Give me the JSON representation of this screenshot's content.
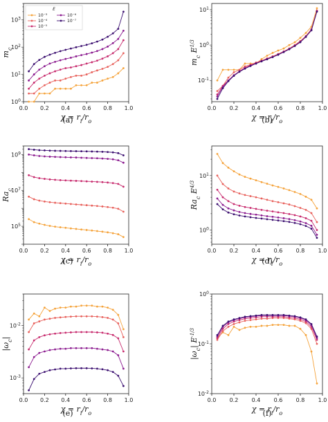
{
  "figure": {
    "legend": {
      "title": "E",
      "entries": [
        {
          "label": "10⁻³",
          "color": "#f5a33b"
        },
        {
          "label": "10⁻⁴",
          "color": "#e8605b"
        },
        {
          "label": "10⁻⁵",
          "color": "#c72a6d"
        },
        {
          "label": "10⁻⁶",
          "color": "#8b1a8f"
        },
        {
          "label": "10⁻⁷",
          "color": "#3b0f70"
        }
      ]
    }
  },
  "chart_data": [
    {
      "type": "line",
      "caption": "(a)",
      "yscale": "log",
      "ylim": [
        1,
        4000
      ],
      "xlim": [
        0,
        1
      ],
      "ylabel": "m_c",
      "xlabel": "χ = r_i/r_o",
      "xticks": [
        0.0,
        0.2,
        0.4,
        0.6,
        0.8,
        1.0
      ],
      "yticks": [
        {
          "v": 1,
          "label": "10",
          "sup": "0"
        },
        {
          "v": 10,
          "label": "10",
          "sup": "1"
        },
        {
          "v": 100,
          "label": "10",
          "sup": "2"
        },
        {
          "v": 1000,
          "label": "10",
          "sup": "3"
        }
      ],
      "legend": "top-left",
      "x": [
        0.05,
        0.1,
        0.15,
        0.2,
        0.25,
        0.3,
        0.35,
        0.4,
        0.45,
        0.5,
        0.55,
        0.6,
        0.65,
        0.7,
        0.75,
        0.8,
        0.85,
        0.9,
        0.95
      ],
      "series": [
        {
          "name": "10⁻³",
          "values": [
            1,
            1,
            2,
            2,
            2,
            3,
            3,
            3,
            3,
            4,
            4,
            4,
            5,
            5,
            6,
            7,
            8,
            11,
            17
          ]
        },
        {
          "name": "10⁻⁴",
          "values": [
            2,
            2,
            3,
            4,
            5,
            6,
            6,
            7,
            8,
            9,
            9,
            10,
            12,
            14,
            16,
            19,
            24,
            33,
            60
          ]
        },
        {
          "name": "10⁻⁵",
          "values": [
            3,
            5,
            7,
            9,
            11,
            13,
            15,
            17,
            18,
            20,
            22,
            25,
            28,
            32,
            38,
            46,
            60,
            85,
            180
          ]
        },
        {
          "name": "10⁻⁶",
          "values": [
            6,
            10,
            15,
            20,
            25,
            29,
            33,
            37,
            41,
            46,
            51,
            56,
            63,
            72,
            85,
            105,
            140,
            200,
            400
          ]
        },
        {
          "name": "10⁻⁷",
          "values": [
            13,
            24,
            34,
            44,
            53,
            62,
            71,
            80,
            89,
            99,
            110,
            122,
            138,
            160,
            190,
            240,
            320,
            470,
            2000
          ]
        }
      ]
    },
    {
      "type": "line",
      "caption": "(b)",
      "yscale": "log",
      "ylim": [
        0.025,
        15
      ],
      "xlim": [
        0,
        1
      ],
      "ylabel": "m_c E^{1/3}",
      "xlabel": "χ = r_i/r_o",
      "xticks": [
        0.0,
        0.2,
        0.4,
        0.6,
        0.8,
        1.0
      ],
      "yticks": [
        {
          "v": 0.1,
          "label": "10",
          "sup": "-1"
        },
        {
          "v": 1,
          "label": "10",
          "sup": "0"
        },
        {
          "v": 10,
          "label": "10",
          "sup": "1"
        }
      ],
      "x": [
        0.05,
        0.1,
        0.15,
        0.2,
        0.25,
        0.3,
        0.35,
        0.4,
        0.45,
        0.5,
        0.55,
        0.6,
        0.65,
        0.7,
        0.75,
        0.8,
        0.85,
        0.9,
        0.95
      ],
      "series": [
        {
          "name": "10⁻³",
          "values": [
            0.1,
            0.2,
            0.2,
            0.2,
            0.2,
            0.3,
            0.3,
            0.3,
            0.4,
            0.5,
            0.6,
            0.7,
            0.8,
            1.0,
            1.2,
            1.6,
            2.2,
            3.3,
            11
          ]
        },
        {
          "name": "10⁻⁴",
          "values": [
            0.05,
            0.07,
            0.12,
            0.17,
            0.2,
            0.25,
            0.28,
            0.32,
            0.36,
            0.42,
            0.48,
            0.56,
            0.66,
            0.8,
            1.0,
            1.3,
            1.8,
            2.8,
            9.5
          ]
        },
        {
          "name": "10⁻⁵",
          "values": [
            0.04,
            0.07,
            0.1,
            0.14,
            0.18,
            0.23,
            0.27,
            0.31,
            0.36,
            0.41,
            0.47,
            0.55,
            0.65,
            0.78,
            0.97,
            1.25,
            1.75,
            2.7,
            9.2
          ]
        },
        {
          "name": "10⁻⁶",
          "values": [
            0.035,
            0.065,
            0.1,
            0.14,
            0.18,
            0.22,
            0.26,
            0.3,
            0.35,
            0.4,
            0.46,
            0.54,
            0.64,
            0.77,
            0.95,
            1.23,
            1.72,
            2.65,
            9.0
          ]
        },
        {
          "name": "10⁻⁷",
          "values": [
            0.03,
            0.06,
            0.095,
            0.135,
            0.175,
            0.215,
            0.255,
            0.3,
            0.345,
            0.395,
            0.455,
            0.53,
            0.63,
            0.76,
            0.94,
            1.2,
            1.7,
            2.6,
            8.8
          ]
        }
      ]
    },
    {
      "type": "line",
      "caption": "(c)",
      "yscale": "log",
      "ylim": [
        10000,
        3000000000
      ],
      "xlim": [
        0,
        1
      ],
      "ylabel": "Ra_c",
      "xlabel": "χ = r_i/r_o",
      "xticks": [
        0.0,
        0.2,
        0.4,
        0.6,
        0.8,
        1.0
      ],
      "yticks": [
        {
          "v": 100000,
          "label": "10",
          "sup": "5"
        },
        {
          "v": 10000000,
          "label": "10",
          "sup": "7"
        },
        {
          "v": 1000000000,
          "label": "10",
          "sup": "9"
        }
      ],
      "x": [
        0.05,
        0.1,
        0.15,
        0.2,
        0.25,
        0.3,
        0.35,
        0.4,
        0.45,
        0.5,
        0.55,
        0.6,
        0.65,
        0.7,
        0.75,
        0.8,
        0.85,
        0.9,
        0.95
      ],
      "series": [
        {
          "name": "10⁻³",
          "values": [
            250000,
            170000,
            140000,
            120000,
            105000,
            95000,
            88000,
            82000,
            76000,
            71000,
            66000,
            62000,
            58000,
            54000,
            50000,
            46000,
            41000,
            36000,
            25000
          ]
        },
        {
          "name": "10⁻⁴",
          "values": [
            4500000,
            3200000,
            2700000,
            2400000,
            2200000,
            2050000,
            1950000,
            1850000,
            1750000,
            1650000,
            1580000,
            1500000,
            1420000,
            1350000,
            1270000,
            1180000,
            1080000,
            950000,
            650000
          ]
        },
        {
          "name": "10⁻⁵",
          "values": [
            70000000,
            55000000,
            48000000,
            44000000,
            41000000,
            39000000,
            37500000,
            36000000,
            35000000,
            34000000,
            33000000,
            32000000,
            31000000,
            30000000,
            29000000,
            27500000,
            25500000,
            23000000,
            16000000
          ]
        },
        {
          "name": "10⁻⁶",
          "values": [
            1000000000,
            900000000,
            830000000,
            790000000,
            760000000,
            740000000,
            720000000,
            705000000,
            690000000,
            680000000,
            665000000,
            650000000,
            635000000,
            620000000,
            600000000,
            575000000,
            540000000,
            480000000,
            350000000
          ]
        },
        {
          "name": "10⁻⁷",
          "values": [
            2000000000,
            1850000000,
            1750000000,
            1700000000,
            1650000000,
            1620000000,
            1600000000,
            1580000000,
            1560000000,
            1540000000,
            1520000000,
            1500000000,
            1480000000,
            1450000000,
            1420000000,
            1380000000,
            1320000000,
            1200000000,
            900000000
          ]
        }
      ]
    },
    {
      "type": "line",
      "caption": "(d)",
      "yscale": "log",
      "ylim": [
        0.55,
        35
      ],
      "xlim": [
        0,
        1
      ],
      "ylabel": "Ra_c E^{4/3}",
      "xlabel": "χ = r_i/r_o",
      "xticks": [
        0.0,
        0.2,
        0.4,
        0.6,
        0.8,
        1.0
      ],
      "yticks": [
        {
          "v": 1,
          "label": "10",
          "sup": "0"
        },
        {
          "v": 10,
          "label": "10",
          "sup": "1"
        }
      ],
      "x": [
        0.05,
        0.1,
        0.15,
        0.2,
        0.25,
        0.3,
        0.35,
        0.4,
        0.45,
        0.5,
        0.55,
        0.6,
        0.65,
        0.7,
        0.75,
        0.8,
        0.85,
        0.9,
        0.95
      ],
      "series": [
        {
          "name": "10⁻³",
          "values": [
            25,
            17,
            14,
            12,
            10.5,
            9.5,
            8.8,
            8.2,
            7.6,
            7.1,
            6.6,
            6.2,
            5.8,
            5.4,
            5.0,
            4.6,
            4.1,
            3.6,
            2.5
          ]
        },
        {
          "name": "10⁻⁴",
          "values": [
            10,
            7,
            5.8,
            5.1,
            4.7,
            4.4,
            4.2,
            4.0,
            3.8,
            3.6,
            3.4,
            3.25,
            3.1,
            2.95,
            2.75,
            2.55,
            2.35,
            2.05,
            1.4
          ]
        },
        {
          "name": "10⁻⁵",
          "values": [
            5.5,
            4.0,
            3.4,
            3.0,
            2.8,
            2.65,
            2.55,
            2.45,
            2.35,
            2.27,
            2.2,
            2.12,
            2.05,
            1.97,
            1.88,
            1.78,
            1.65,
            1.48,
            1.0
          ]
        },
        {
          "name": "10⁻⁶",
          "values": [
            3.8,
            2.9,
            2.5,
            2.3,
            2.15,
            2.05,
            1.98,
            1.92,
            1.86,
            1.8,
            1.75,
            1.7,
            1.65,
            1.59,
            1.52,
            1.44,
            1.34,
            1.2,
            0.82
          ]
        },
        {
          "name": "10⁻⁷",
          "values": [
            3.0,
            2.4,
            2.1,
            1.95,
            1.85,
            1.78,
            1.72,
            1.67,
            1.63,
            1.58,
            1.54,
            1.5,
            1.46,
            1.41,
            1.35,
            1.28,
            1.19,
            1.06,
            0.72
          ]
        }
      ]
    },
    {
      "type": "line",
      "caption": "(e)",
      "yscale": "log",
      "ylim": [
        0.0005,
        0.04
      ],
      "xlim": [
        0,
        1
      ],
      "ylabel": "|ω_c|",
      "xlabel": "χ = r_i/r_o",
      "xticks": [
        0.0,
        0.2,
        0.4,
        0.6,
        0.8,
        1.0
      ],
      "yticks": [
        {
          "v": 0.001,
          "label": "10",
          "sup": "-3"
        },
        {
          "v": 0.01,
          "label": "10",
          "sup": "-2"
        }
      ],
      "x": [
        0.05,
        0.1,
        0.15,
        0.2,
        0.25,
        0.3,
        0.35,
        0.4,
        0.45,
        0.5,
        0.55,
        0.6,
        0.65,
        0.7,
        0.75,
        0.8,
        0.85,
        0.9,
        0.95
      ],
      "series": [
        {
          "name": "10⁻³",
          "values": [
            0.013,
            0.017,
            0.015,
            0.022,
            0.019,
            0.021,
            0.022,
            0.022,
            0.023,
            0.023,
            0.024,
            0.024,
            0.024,
            0.023,
            0.023,
            0.022,
            0.02,
            0.016,
            0.0085
          ]
        },
        {
          "name": "10⁻⁴",
          "values": [
            0.0075,
            0.011,
            0.012,
            0.013,
            0.0135,
            0.014,
            0.0143,
            0.0146,
            0.0148,
            0.015,
            0.015,
            0.015,
            0.015,
            0.0148,
            0.0145,
            0.014,
            0.013,
            0.011,
            0.006
          ]
        },
        {
          "name": "10⁻⁵",
          "values": [
            0.0035,
            0.0052,
            0.006,
            0.0065,
            0.0068,
            0.007,
            0.0072,
            0.0073,
            0.0074,
            0.0075,
            0.0075,
            0.0075,
            0.0075,
            0.0074,
            0.0073,
            0.007,
            0.0066,
            0.0057,
            0.0032
          ]
        },
        {
          "name": "10⁻⁶",
          "values": [
            0.0016,
            0.0025,
            0.003,
            0.0032,
            0.0034,
            0.0035,
            0.0036,
            0.0036,
            0.0037,
            0.0037,
            0.0037,
            0.0037,
            0.0037,
            0.0036,
            0.0035,
            0.0034,
            0.0032,
            0.0027,
            0.0015
          ]
        },
        {
          "name": "10⁻⁷",
          "values": [
            0.00058,
            0.00095,
            0.0012,
            0.0013,
            0.0014,
            0.00145,
            0.0015,
            0.0015,
            0.00152,
            0.00153,
            0.00153,
            0.00153,
            0.00152,
            0.0015,
            0.00146,
            0.0014,
            0.0013,
            0.0011,
            0.0007
          ]
        }
      ]
    },
    {
      "type": "line",
      "caption": "(f)",
      "yscale": "log",
      "ylim": [
        0.01,
        1.0
      ],
      "xlim": [
        0,
        1
      ],
      "ylabel": "|ω_c| E^{-1/3}",
      "xlabel": "χ = r_i/r_o",
      "xticks": [
        0.0,
        0.2,
        0.4,
        0.6,
        0.8,
        1.0
      ],
      "yticks": [
        {
          "v": 0.01,
          "label": "10",
          "sup": "-2"
        },
        {
          "v": 0.1,
          "label": "10",
          "sup": "-1"
        },
        {
          "v": 1,
          "label": "10",
          "sup": "0"
        }
      ],
      "x": [
        0.05,
        0.1,
        0.15,
        0.2,
        0.25,
        0.3,
        0.35,
        0.4,
        0.45,
        0.5,
        0.55,
        0.6,
        0.65,
        0.7,
        0.75,
        0.8,
        0.85,
        0.9,
        0.95
      ],
      "series": [
        {
          "name": "10⁻³",
          "values": [
            0.13,
            0.17,
            0.15,
            0.22,
            0.19,
            0.21,
            0.22,
            0.22,
            0.23,
            0.23,
            0.24,
            0.24,
            0.24,
            0.23,
            0.23,
            0.2,
            0.15,
            0.07,
            0.016
          ]
        },
        {
          "name": "10⁻⁴",
          "values": [
            0.12,
            0.18,
            0.22,
            0.25,
            0.27,
            0.29,
            0.3,
            0.31,
            0.32,
            0.32,
            0.33,
            0.33,
            0.33,
            0.32,
            0.31,
            0.29,
            0.26,
            0.2,
            0.1
          ]
        },
        {
          "name": "10⁻⁵",
          "values": [
            0.13,
            0.2,
            0.25,
            0.28,
            0.3,
            0.32,
            0.33,
            0.34,
            0.35,
            0.35,
            0.35,
            0.35,
            0.35,
            0.34,
            0.33,
            0.31,
            0.28,
            0.22,
            0.12
          ]
        },
        {
          "name": "10⁻⁶",
          "values": [
            0.14,
            0.22,
            0.27,
            0.3,
            0.32,
            0.34,
            0.35,
            0.36,
            0.37,
            0.37,
            0.37,
            0.37,
            0.37,
            0.36,
            0.35,
            0.33,
            0.3,
            0.24,
            0.13
          ]
        },
        {
          "name": "10⁻⁷",
          "values": [
            0.15,
            0.23,
            0.28,
            0.31,
            0.33,
            0.35,
            0.36,
            0.37,
            0.38,
            0.38,
            0.38,
            0.38,
            0.38,
            0.37,
            0.36,
            0.34,
            0.31,
            0.25,
            0.14
          ]
        }
      ]
    }
  ]
}
